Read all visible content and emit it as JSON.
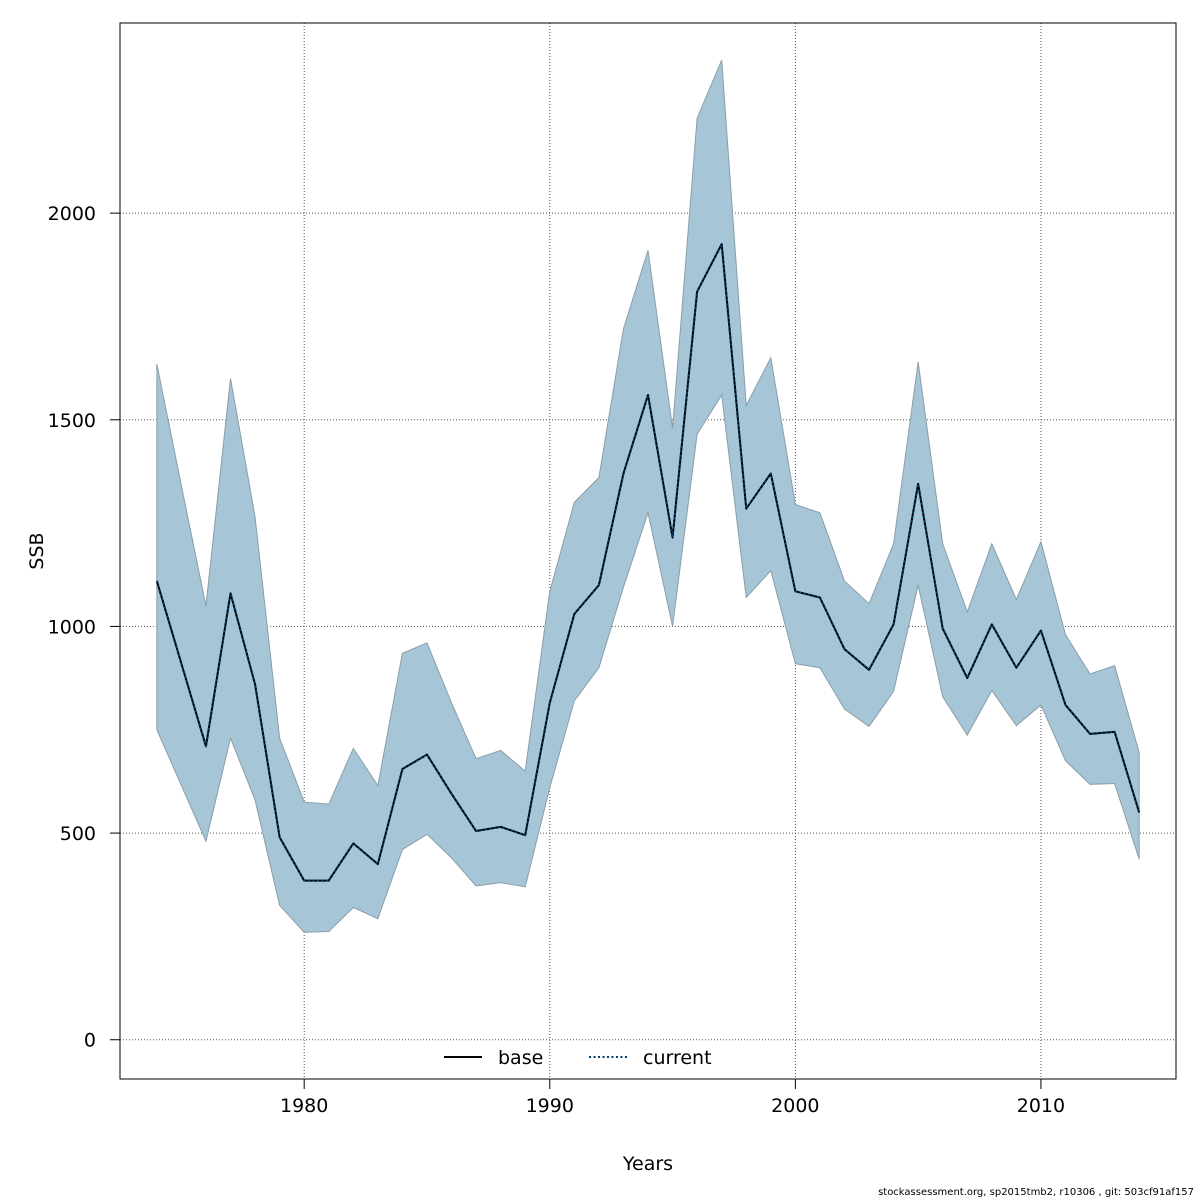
{
  "chart_data": {
    "type": "line",
    "xlabel": "Years",
    "ylabel": "SSB",
    "xlim": [
      1972.5,
      2015.5
    ],
    "ylim": [
      -95,
      2460
    ],
    "x_ticks": [
      1980,
      1990,
      2000,
      2010
    ],
    "y_ticks": [
      0,
      500,
      1000,
      1500,
      2000
    ],
    "grid": true,
    "legend_position": "bottom-center",
    "colors": {
      "band": "#a6c5d6",
      "band_edge": "#8a9ea8",
      "base": "#000000",
      "current": "#003f6e"
    },
    "x": [
      1974,
      1975,
      1976,
      1977,
      1978,
      1979,
      1980,
      1981,
      1982,
      1983,
      1984,
      1985,
      1986,
      1987,
      1988,
      1989,
      1990,
      1991,
      1992,
      1993,
      1994,
      1995,
      1996,
      1997,
      1998,
      1999,
      2000,
      2001,
      2002,
      2003,
      2004,
      2005,
      2006,
      2007,
      2008,
      2009,
      2010,
      2011,
      2012,
      2013,
      2014
    ],
    "series": [
      {
        "name": "base",
        "style": "solid",
        "values": [
          1110,
          910,
          710,
          1080,
          860,
          490,
          385,
          385,
          475,
          425,
          655,
          690,
          595,
          505,
          515,
          495,
          815,
          1030,
          1100,
          1370,
          1560,
          1215,
          1810,
          1925,
          1285,
          1370,
          1085,
          1070,
          945,
          895,
          1005,
          1345,
          995,
          875,
          1005,
          900,
          990,
          810,
          740,
          745,
          550
        ]
      },
      {
        "name": "current",
        "style": "dotted",
        "values": [
          1110,
          910,
          710,
          1080,
          860,
          490,
          385,
          385,
          475,
          425,
          655,
          690,
          595,
          505,
          515,
          495,
          815,
          1030,
          1100,
          1370,
          1560,
          1215,
          1810,
          1925,
          1285,
          1370,
          1085,
          1070,
          945,
          895,
          1005,
          1345,
          995,
          875,
          1005,
          900,
          990,
          810,
          740,
          745,
          550
        ]
      }
    ],
    "confidence_band": {
      "upper": [
        1635,
        1340,
        1050,
        1600,
        1265,
        730,
        575,
        570,
        705,
        615,
        935,
        960,
        815,
        680,
        700,
        650,
        1085,
        1300,
        1360,
        1720,
        1910,
        1480,
        2230,
        2370,
        1535,
        1650,
        1295,
        1275,
        1110,
        1055,
        1200,
        1640,
        1200,
        1035,
        1200,
        1065,
        1205,
        980,
        885,
        905,
        695
      ],
      "lower": [
        750,
        615,
        480,
        730,
        580,
        325,
        260,
        262,
        320,
        293,
        460,
        497,
        440,
        372,
        380,
        370,
        610,
        820,
        900,
        1095,
        1275,
        1000,
        1465,
        1560,
        1070,
        1135,
        910,
        900,
        800,
        758,
        843,
        1100,
        830,
        737,
        845,
        760,
        810,
        675,
        618,
        620,
        437
      ]
    }
  },
  "footer": "stockassessment.org, sp2015tmb2, r10306 , git: 503cf91af157"
}
